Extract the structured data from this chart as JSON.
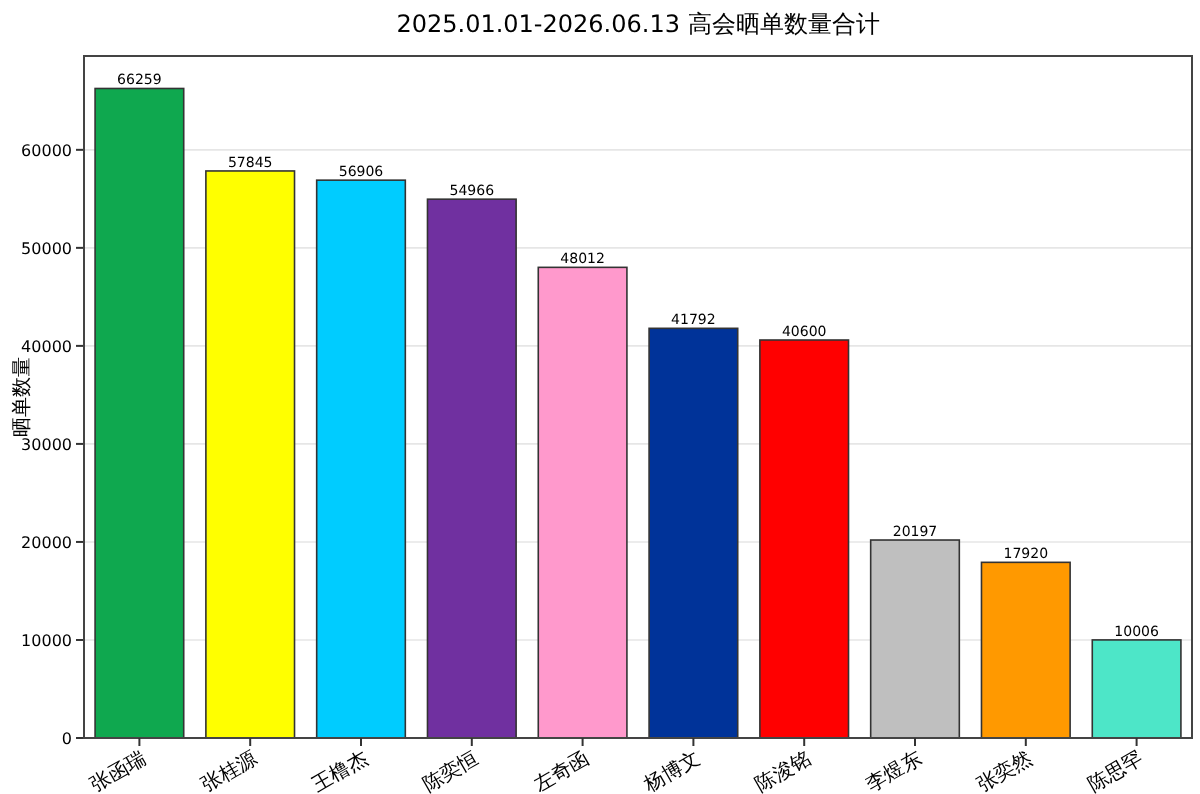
{
  "chart_data": {
    "type": "bar",
    "title": "2025.01.01-2026.06.13 高会晒单数量合计",
    "ylabel": "晒单数量",
    "categories": [
      "张函瑞",
      "张桂源",
      "王橹杰",
      "陈奕恒",
      "左奇函",
      "杨博文",
      "陈浚铭",
      "李煜东",
      "张奕然",
      "陈思罕"
    ],
    "values": [
      66259,
      57845,
      56906,
      54966,
      48012,
      41792,
      40600,
      20197,
      17920,
      10006
    ],
    "colors": [
      "#0fa84f",
      "#ffff00",
      "#00ccff",
      "#7030a0",
      "#ff99cc",
      "#003399",
      "#ff0000",
      "#bfbfbf",
      "#ff9900",
      "#4de6c8"
    ],
    "data_labels": true,
    "ylim": [
      0,
      69572
    ],
    "yticks": [
      0,
      10000,
      20000,
      30000,
      40000,
      50000,
      60000
    ],
    "grid": "y"
  }
}
